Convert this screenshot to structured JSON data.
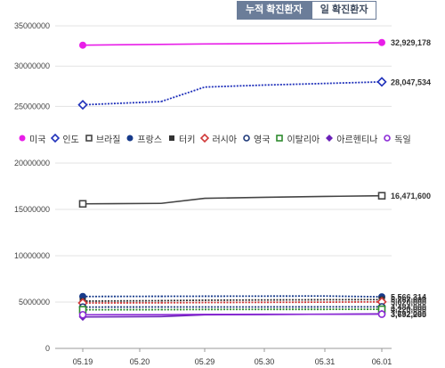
{
  "tabs": [
    {
      "label": "누적 확진환자",
      "active": true
    },
    {
      "label": "일 확진환자",
      "active": false
    }
  ],
  "chart_data": [
    {
      "type": "line",
      "categories": [
        "05.19",
        "05.20",
        "05.29",
        "05.30",
        "05.31",
        "06.01"
      ],
      "ylim": [
        23500000,
        35000000
      ],
      "yticks": [
        25000000,
        30000000,
        35000000
      ],
      "ytick_labels": [
        "25000000",
        "30000000",
        "35000000"
      ],
      "series": [
        {
          "name": "미국",
          "color": "#e81ee8",
          "marker": "circle-filled",
          "values": [
            32600000,
            32700000,
            32750000,
            32800000,
            32870000,
            32929178
          ],
          "end_label": "32,929,178"
        },
        {
          "name": "인도",
          "color": "#2233bb",
          "marker": "diamond-open",
          "values": [
            25200000,
            25600000,
            27400000,
            27650000,
            27850000,
            28047534
          ],
          "end_label": "28,047,534"
        }
      ]
    },
    {
      "type": "line",
      "categories": [
        "05.19",
        "05.20",
        "05.29",
        "05.30",
        "05.31",
        "06.01"
      ],
      "ylim": [
        0,
        20000000
      ],
      "yticks": [
        0,
        5000000,
        10000000,
        15000000,
        20000000
      ],
      "ytick_labels": [
        "0",
        "5000000",
        "10000000",
        "15000000",
        "20000000"
      ],
      "series": [
        {
          "name": "브라질",
          "color": "#444444",
          "marker": "square-open",
          "values": [
            15600000,
            15650000,
            16200000,
            16300000,
            16400000,
            16471600
          ],
          "end_label": "16,471,600"
        },
        {
          "name": "프랑스",
          "color": "#173a8a",
          "marker": "circle-filled",
          "values": [
            5600000,
            5620000,
            5630000,
            5640000,
            5650000,
            5566314
          ],
          "end_label": "5,566,314"
        },
        {
          "name": "터키",
          "color": "#333333",
          "marker": "square-filled",
          "values": [
            5100000,
            5150000,
            5200000,
            5230000,
            5250000,
            5267000
          ],
          "end_label": "5,267,000"
        },
        {
          "name": "러시아",
          "color": "#d03a3a",
          "marker": "diamond-open",
          "values": [
            4900000,
            4920000,
            4950000,
            4970000,
            4990000,
            5020000
          ],
          "end_label": "5,020,000"
        },
        {
          "name": "영국",
          "color": "#1f3a7a",
          "marker": "circle-open",
          "values": [
            4460000,
            4470000,
            4470000,
            4475000,
            4480000,
            4484000
          ],
          "end_label": "4,484,000"
        },
        {
          "name": "이탈리아",
          "color": "#2e8b2e",
          "marker": "square-open",
          "values": [
            4170000,
            4180000,
            4200000,
            4210000,
            4215000,
            4220000
          ],
          "end_label": "4,220,000"
        },
        {
          "name": "아르헨티나",
          "color": "#6a20b8",
          "marker": "diamond-filled",
          "values": [
            3400000,
            3430000,
            3620000,
            3650000,
            3690000,
            3732000
          ],
          "end_label": "3,732,000"
        },
        {
          "name": "독일",
          "color": "#8c2bd6",
          "marker": "circle-open",
          "values": [
            3630000,
            3640000,
            3670000,
            3680000,
            3685000,
            3692285
          ],
          "end_label": "3,692,285"
        }
      ]
    }
  ]
}
